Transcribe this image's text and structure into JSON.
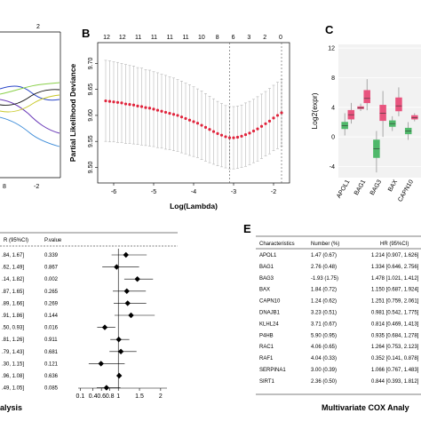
{
  "panels": {
    "a": {
      "top_tick": "2",
      "bottom_ticks": [
        "8",
        "-2"
      ]
    },
    "b": {
      "label": "B",
      "top_ticks": [
        "12",
        "12",
        "11",
        "11",
        "11",
        "11",
        "10",
        "8",
        "6",
        "3",
        "2",
        "0"
      ],
      "xlabel": "Log(Lambda)",
      "ylabel": "Partial Likelihood Deviance",
      "chart_data": {
        "type": "line",
        "x_ticks": [
          "-6",
          "-5",
          "-4",
          "-3",
          "-2"
        ],
        "y_ticks": [
          "9.50",
          "9.55",
          "9.60",
          "9.65",
          "9.70"
        ],
        "xlim": [
          -6.4,
          -1.6
        ],
        "ylim": [
          9.47,
          9.74
        ],
        "reference_lines_x": [
          -3.1,
          -1.8
        ],
        "x": [
          -6.2,
          -6.1,
          -6.0,
          -5.9,
          -5.8,
          -5.7,
          -5.6,
          -5.5,
          -5.4,
          -5.3,
          -5.2,
          -5.1,
          -5.0,
          -4.9,
          -4.8,
          -4.7,
          -4.6,
          -4.5,
          -4.4,
          -4.3,
          -4.2,
          -4.1,
          -4.0,
          -3.9,
          -3.8,
          -3.7,
          -3.6,
          -3.5,
          -3.4,
          -3.3,
          -3.2,
          -3.1,
          -3.0,
          -2.9,
          -2.8,
          -2.7,
          -2.6,
          -2.5,
          -2.4,
          -2.3,
          -2.2,
          -2.1,
          -2.0,
          -1.9,
          -1.8
        ],
        "y": [
          9.628,
          9.627,
          9.626,
          9.625,
          9.624,
          9.622,
          9.621,
          9.62,
          9.618,
          9.617,
          9.615,
          9.614,
          9.612,
          9.61,
          9.608,
          9.606,
          9.604,
          9.602,
          9.6,
          9.597,
          9.594,
          9.591,
          9.588,
          9.585,
          9.581,
          9.577,
          9.573,
          9.569,
          9.565,
          9.562,
          9.559,
          9.557,
          9.557,
          9.558,
          9.56,
          9.563,
          9.566,
          9.57,
          9.574,
          9.579,
          9.584,
          9.589,
          9.595,
          9.6,
          9.605
        ],
        "err_half": [
          0.078,
          0.078,
          0.077,
          0.077,
          0.076,
          0.076,
          0.075,
          0.075,
          0.074,
          0.074,
          0.073,
          0.073,
          0.072,
          0.072,
          0.071,
          0.071,
          0.07,
          0.07,
          0.069,
          0.069,
          0.068,
          0.068,
          0.067,
          0.066,
          0.066,
          0.065,
          0.064,
          0.063,
          0.062,
          0.061,
          0.06,
          0.06,
          0.06,
          0.06,
          0.06,
          0.061,
          0.061,
          0.061,
          0.062,
          0.062,
          0.062,
          0.063,
          0.063,
          0.064,
          0.064
        ]
      }
    },
    "c": {
      "label": "C",
      "ylabel": "Log2(expr)",
      "chart_data": {
        "type": "box",
        "categories": [
          "APOL1",
          "BAG1",
          "BAG3",
          "BAX",
          "CAPN10"
        ],
        "y_ticks": [
          "-4",
          "0",
          "4",
          "8",
          "12"
        ],
        "ylim": [
          -5.5,
          12.5
        ],
        "boxes": [
          {
            "x": 0.6,
            "q1": 1.1,
            "median": 1.5,
            "q3": 2.0,
            "lo": 0.2,
            "hi": 3.2,
            "color": "#4fb86a"
          },
          {
            "x": 1.0,
            "q1": 2.4,
            "median": 3.0,
            "q3": 3.6,
            "lo": 1.8,
            "hi": 4.6,
            "color": "#e8547e"
          },
          {
            "x": 1.6,
            "q1": 3.8,
            "median": 3.9,
            "q3": 4.1,
            "lo": 3.5,
            "hi": 4.5,
            "color": "#e8547e"
          },
          {
            "x": 2.0,
            "q1": 4.6,
            "median": 5.2,
            "q3": 6.3,
            "lo": 3.6,
            "hi": 7.8,
            "color": "#e8547e"
          },
          {
            "x": 2.6,
            "q1": -2.8,
            "median": -1.6,
            "q3": -0.4,
            "lo": -4.8,
            "hi": 0.8,
            "color": "#4fb86a"
          },
          {
            "x": 3.0,
            "q1": 2.2,
            "median": 3.2,
            "q3": 4.3,
            "lo": 0.0,
            "hi": 6.2,
            "color": "#e8547e"
          },
          {
            "x": 3.6,
            "q1": 1.4,
            "median": 1.8,
            "q3": 2.2,
            "lo": 0.8,
            "hi": 2.8,
            "color": "#4fb86a"
          },
          {
            "x": 4.0,
            "q1": 3.5,
            "median": 4.2,
            "q3": 5.3,
            "lo": 2.8,
            "hi": 6.7,
            "color": "#e8547e"
          },
          {
            "x": 4.6,
            "q1": 0.4,
            "median": 0.8,
            "q3": 1.2,
            "lo": -0.4,
            "hi": 2.0,
            "color": "#4fb86a"
          },
          {
            "x": 5.0,
            "q1": 2.4,
            "median": 2.6,
            "q3": 2.9,
            "lo": 2.1,
            "hi": 3.2,
            "color": "#e8547e"
          }
        ]
      }
    },
    "d": {
      "header_hr": "R (95%CI)",
      "header_p": "P.value",
      "rows": [
        {
          "ci": ".84, 1.67]",
          "p": "0.339"
        },
        {
          "ci": ".62, 1.49]",
          "p": "0.867"
        },
        {
          "ci": ".14, 1.82]",
          "p": "0.002"
        },
        {
          "ci": ".87, 1.65]",
          "p": "0.265"
        },
        {
          "ci": ".89, 1.66]",
          "p": "0.269"
        },
        {
          "ci": ".91, 1.86]",
          "p": "0.144"
        },
        {
          "ci": ".50, 0.93]",
          "p": "0.016"
        },
        {
          "ci": ".81, 1.26]",
          "p": "0.911"
        },
        {
          "ci": ".79, 1.43]",
          "p": "0.681"
        },
        {
          "ci": ".30, 1.15]",
          "p": "0.121"
        },
        {
          "ci": ".96, 1.08]",
          "p": "0.636"
        },
        {
          "ci": ".49, 1.05]",
          "p": "0.085"
        }
      ],
      "footer": "alysis",
      "chart_data": {
        "type": "forest",
        "x_ticks": [
          "0.1",
          "0.4",
          "0.6",
          "0.8",
          "1",
          "1.5",
          "2"
        ],
        "x_tick_values": [
          0.1,
          0.4,
          0.6,
          0.8,
          1,
          1.5,
          2
        ],
        "xlim": [
          0.05,
          2.15
        ],
        "ref_line": 1,
        "points": [
          {
            "hr": 1.18,
            "lo": 0.84,
            "hi": 1.67
          },
          {
            "hr": 0.96,
            "lo": 0.62,
            "hi": 1.49
          },
          {
            "hr": 1.45,
            "lo": 1.14,
            "hi": 1.82
          },
          {
            "hr": 1.2,
            "lo": 0.87,
            "hi": 1.65
          },
          {
            "hr": 1.22,
            "lo": 0.89,
            "hi": 1.66
          },
          {
            "hr": 1.3,
            "lo": 0.91,
            "hi": 1.86
          },
          {
            "hr": 0.68,
            "lo": 0.5,
            "hi": 0.93
          },
          {
            "hr": 1.01,
            "lo": 0.81,
            "hi": 1.26
          },
          {
            "hr": 1.06,
            "lo": 0.79,
            "hi": 1.43
          },
          {
            "hr": 0.59,
            "lo": 0.3,
            "hi": 1.15
          },
          {
            "hr": 1.02,
            "lo": 0.96,
            "hi": 1.08
          },
          {
            "hr": 0.72,
            "lo": 0.49,
            "hi": 1.05
          }
        ]
      }
    },
    "e": {
      "label": "E",
      "headers": [
        "Characteristics",
        "Number (%)",
        "HR (95%CI)"
      ],
      "rows": [
        [
          "APOL1",
          "1.47 (0.67)",
          "1.214 [0.907, 1.626]"
        ],
        [
          "BAG1",
          "2.76 (0.48)",
          "1.334 [0.646, 2.756]"
        ],
        [
          "BAG3",
          "-1.93 (1.75)",
          "1.478 [1.021, 1.412]"
        ],
        [
          "BAX",
          "1.84 (0.72)",
          "1.150 [0.687, 1.924]"
        ],
        [
          "CAPN10",
          "1.24 (0.62)",
          "1.251 [0.759, 2.061]"
        ],
        [
          "DNAJB1",
          "3.23 (0.51)",
          "0.981 [0.542, 1.775]"
        ],
        [
          "KLHL24",
          "3.71 (0.67)",
          "0.814 [0.469, 1.413]"
        ],
        [
          "P4HB",
          "5.90 (0.95)",
          "0.935 [0.684, 1.278]"
        ],
        [
          "RAC1",
          "4.06 (0.65)",
          "1.264 [0.753, 2.123]"
        ],
        [
          "RAF1",
          "4.04 (0.33)",
          "0.352 [0.141, 0.878]"
        ],
        [
          "SERPINA1",
          "3.00 (0.39)",
          "1.066 [0.767, 1.483]"
        ],
        [
          "SIRT1",
          "2.36 (0.50)",
          "0.844 [0.393, 1.812]"
        ]
      ],
      "footer": "Multivariate COX Analy"
    }
  }
}
